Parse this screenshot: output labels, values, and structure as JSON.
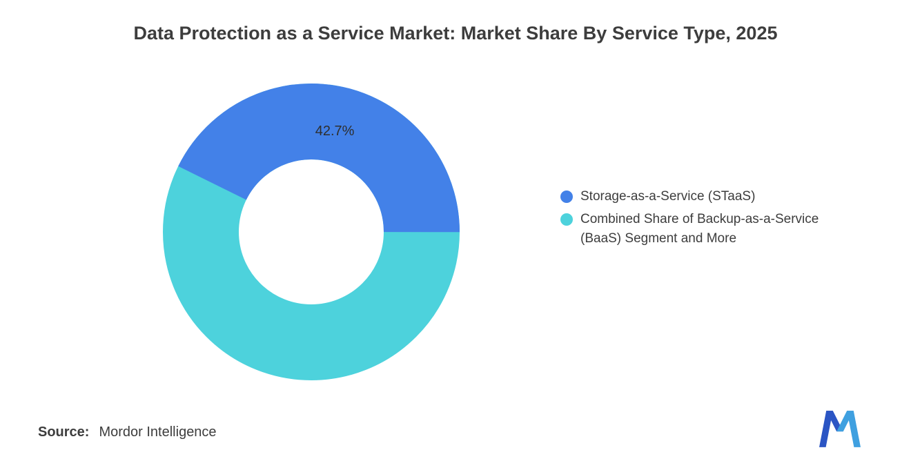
{
  "title": "Data Protection as a Service Market: Market Share By Service Type, 2025",
  "chart_data": {
    "type": "pie",
    "subtype": "donut",
    "title": "Data Protection as a Service Market: Market Share By Service Type, 2025",
    "unit": "%",
    "slices": [
      {
        "label": "Storage-as-a-Service (STaaS)",
        "value": 42.7,
        "color": "#4381e8"
      },
      {
        "label": "Combined Share of Backup-as-a-Service (BaaS) Segment and More",
        "value": 57.3,
        "color": "#4dd2dc"
      }
    ],
    "data_label": "42.7%",
    "legend_position": "right",
    "inner_radius_ratio": 0.49,
    "background": "#ffffff"
  },
  "legend": {
    "items": [
      {
        "label": "Storage-as-a-Service (STaaS)",
        "color": "#4381e8"
      },
      {
        "label": "Combined Share of Backup-as-a-Service (BaaS) Segment and More",
        "color": "#4dd2dc"
      }
    ]
  },
  "source": {
    "label": "Source:",
    "value": "Mordor Intelligence"
  },
  "logo": {
    "name": "mordor-intelligence-logo",
    "color_left": "#2b55c4",
    "color_right": "#3fa0e0"
  }
}
